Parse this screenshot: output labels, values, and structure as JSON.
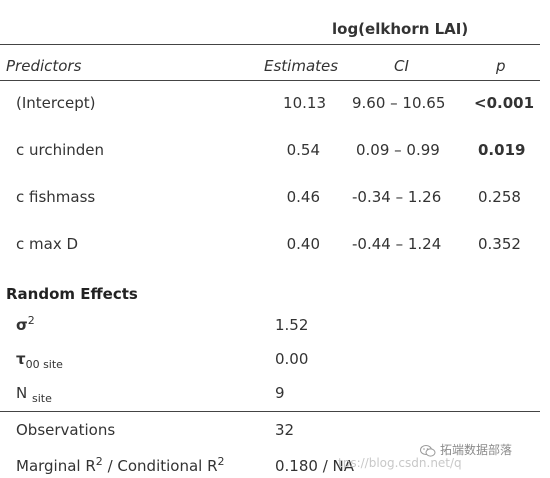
{
  "dependent_var": "log(elkhorn LAI)",
  "headers": {
    "predictors": "Predictors",
    "estimates": "Estimates",
    "ci": "CI",
    "p": "p"
  },
  "rows": [
    {
      "name": "(Intercept)",
      "estimate": "10.13",
      "ci": "9.60 – 10.65",
      "p": "<0.001",
      "p_bold": true
    },
    {
      "name": "c urchinden",
      "estimate": "0.54",
      "ci": "0.09 – 0.99",
      "p": "0.019",
      "p_bold": true
    },
    {
      "name": "c fishmass",
      "estimate": "0.46",
      "ci": "-0.34 – 1.26",
      "p": "0.258",
      "p_bold": false
    },
    {
      "name": "c max D",
      "estimate": "0.40",
      "ci": "-0.44 – 1.24",
      "p": "0.352",
      "p_bold": false
    }
  ],
  "random_effects": {
    "title": "Random Effects",
    "sigma_symbol": "σ",
    "sigma_sup": "2",
    "sigma_value": "1.52",
    "tau_symbol": "τ",
    "tau_sub_index": "00",
    "tau_sub_group": "site",
    "tau_value": "0.00",
    "n_label": "N",
    "n_sub": "site",
    "n_value": "9"
  },
  "model_stats": {
    "observations_label": "Observations",
    "observations_value": "32",
    "r2_label_a": "Marginal R",
    "r2_sup_a": "2",
    "r2_label_b": " / Conditional R",
    "r2_sup_b": "2",
    "r2_value": "0.180 / NA"
  },
  "watermark": {
    "url_text": "tps://blog.csdn.net/q",
    "brand_text": "拓端数据部落",
    "icon": "wechat-icon"
  }
}
